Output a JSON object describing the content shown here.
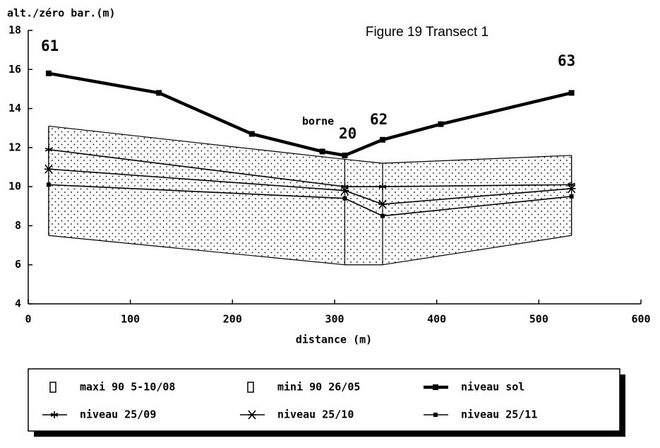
{
  "chart_data": {
    "type": "line",
    "title": "Figure 19 Transect 1",
    "y_label": "alt./zéro bar.(m)",
    "x_label": "distance (m)",
    "annotations": [
      "61",
      "borne",
      "20",
      "62",
      "63"
    ],
    "xlim": [
      0,
      600
    ],
    "xticks": [
      0,
      100,
      200,
      300,
      400,
      500,
      600
    ],
    "ylim": [
      4,
      18
    ],
    "yticks": [
      4,
      6,
      8,
      10,
      12,
      14,
      16,
      18
    ],
    "series": [
      {
        "name": "maxi 90 5-10/08",
        "color": "#000000",
        "marker": "band",
        "x": [
          20,
          310,
          347,
          532
        ],
        "values": [
          13.1,
          11.4,
          11.2,
          11.6
        ]
      },
      {
        "name": "mini 90 26/05",
        "color": "#000000",
        "marker": "band",
        "x": [
          20,
          310,
          347,
          532
        ],
        "values": [
          7.5,
          6.0,
          6.0,
          7.5
        ]
      },
      {
        "name": "niveau sol",
        "color": "#000000",
        "marker": "square",
        "x": [
          20,
          128,
          219,
          288,
          310,
          347,
          404,
          532
        ],
        "values": [
          15.8,
          14.8,
          12.7,
          11.8,
          11.6,
          12.4,
          13.2,
          14.8
        ]
      },
      {
        "name": "niveau 25/09",
        "color": "#000000",
        "marker": "star",
        "x": [
          20,
          310,
          347,
          532
        ],
        "values": [
          11.9,
          10.0,
          10.0,
          10.1
        ]
      },
      {
        "name": "niveau 25/10",
        "color": "#000000",
        "marker": "asterisk",
        "x": [
          20,
          310,
          347,
          532
        ],
        "values": [
          10.9,
          9.8,
          9.1,
          9.9
        ]
      },
      {
        "name": "niveau 25/11",
        "color": "#000000",
        "marker": "small-square",
        "x": [
          20,
          310,
          347,
          532
        ],
        "values": [
          10.1,
          9.4,
          8.5,
          9.5
        ]
      }
    ]
  }
}
